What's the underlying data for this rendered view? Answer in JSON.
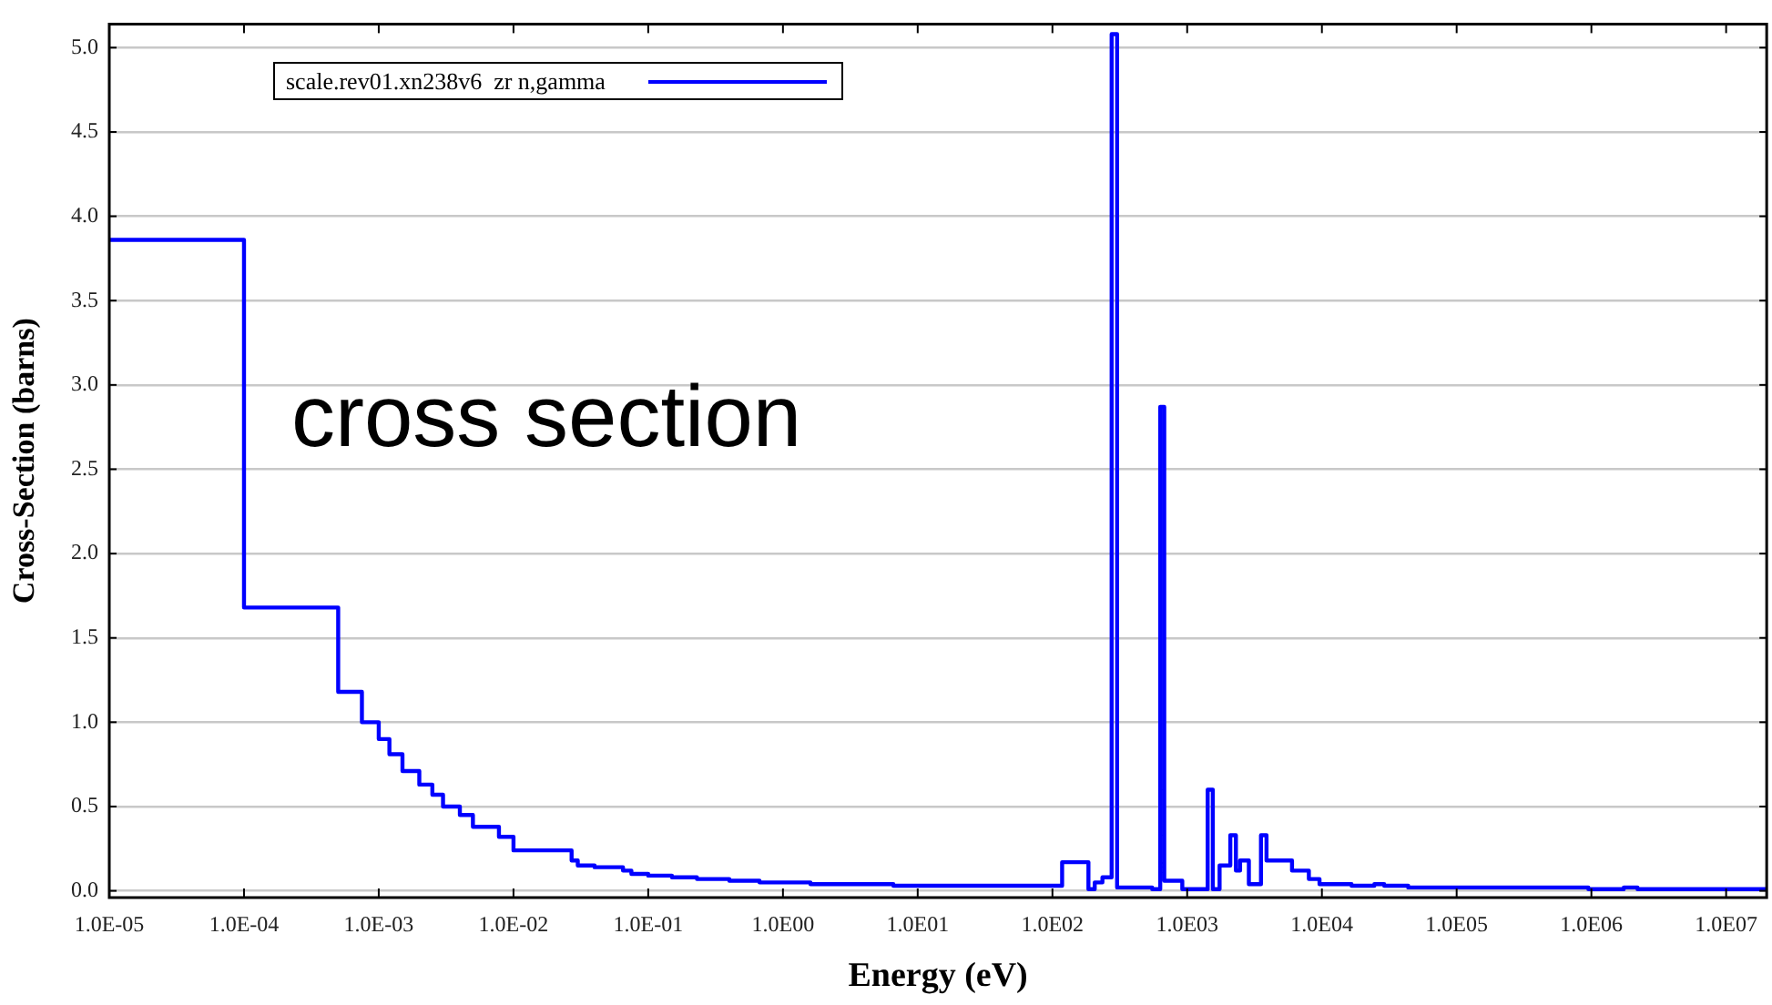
{
  "chart_data": {
    "type": "step",
    "xlabel": "Energy (eV)",
    "ylabel": "Cross-Section (barns)",
    "annotations": [
      "cross section"
    ],
    "log": "x",
    "grid": "y",
    "legend": "top left",
    "marker": "none",
    "line_style": "solid",
    "xlim": [
      1e-05,
      20000000
    ],
    "ylim": [
      -0.04,
      5.14
    ],
    "xticks": [
      {
        "value": 1e-05,
        "label": "1.0E-05"
      },
      {
        "value": 0.0001,
        "label": "1.0E-04"
      },
      {
        "value": 0.001,
        "label": "1.0E-03"
      },
      {
        "value": 0.01,
        "label": "1.0E-02"
      },
      {
        "value": 0.1,
        "label": "1.0E-01"
      },
      {
        "value": 1,
        "label": "1.0E00"
      },
      {
        "value": 10,
        "label": "1.0E01"
      },
      {
        "value": 100,
        "label": "1.0E02"
      },
      {
        "value": 1000,
        "label": "1.0E03"
      },
      {
        "value": 10000,
        "label": "1.0E04"
      },
      {
        "value": 100000,
        "label": "1.0E05"
      },
      {
        "value": 1000000,
        "label": "1.0E06"
      },
      {
        "value": 10000000,
        "label": "1.0E07"
      }
    ],
    "yticks": [
      {
        "value": 0,
        "label": "0.0"
      },
      0.5,
      {
        "value": 1,
        "label": "1.0"
      },
      1.5,
      {
        "value": 2,
        "label": "2.0"
      },
      2.5,
      {
        "value": 3,
        "label": "3.0"
      },
      3.5,
      {
        "value": 4,
        "label": "4.0"
      },
      4.5,
      {
        "value": 5,
        "label": "5.0"
      }
    ],
    "series": [
      {
        "name": "scale.rev01.xn238v6  zr n,gamma",
        "color": "#0000ff",
        "x": [
          1e-05,
          0.0001,
          0.0005,
          0.00075,
          0.001,
          0.0012,
          0.0015,
          0.002,
          0.0025,
          0.003,
          0.004,
          0.005,
          0.0078,
          0.01,
          0.027,
          0.03,
          0.04,
          0.065,
          0.075,
          0.1,
          0.15,
          0.23,
          0.4,
          0.67,
          1.6,
          6.6,
          118,
          185,
          206,
          235,
          275,
          302,
          550,
          631,
          676,
          920,
          1420,
          1550,
          1740,
          2090,
          2300,
          2470,
          2870,
          3530,
          3880,
          6000,
          8000,
          9600,
          16600,
          24500,
          29000,
          43700,
          950000,
          1740000,
          2200000,
          20000000
        ],
        "values": [
          3.86,
          1.68,
          1.18,
          1.0,
          0.9,
          0.81,
          0.71,
          0.63,
          0.57,
          0.5,
          0.45,
          0.38,
          0.32,
          0.24,
          0.18,
          0.15,
          0.14,
          0.12,
          0.1,
          0.09,
          0.08,
          0.07,
          0.06,
          0.05,
          0.04,
          0.03,
          0.17,
          0.01,
          0.05,
          0.08,
          5.08,
          0.02,
          0.01,
          2.87,
          0.06,
          0.01,
          0.6,
          0.01,
          0.15,
          0.33,
          0.12,
          0.18,
          0.04,
          0.33,
          0.18,
          0.12,
          0.07,
          0.04,
          0.03,
          0.04,
          0.03,
          0.02,
          0.01,
          0.02,
          0.01,
          0.01
        ]
      }
    ]
  }
}
